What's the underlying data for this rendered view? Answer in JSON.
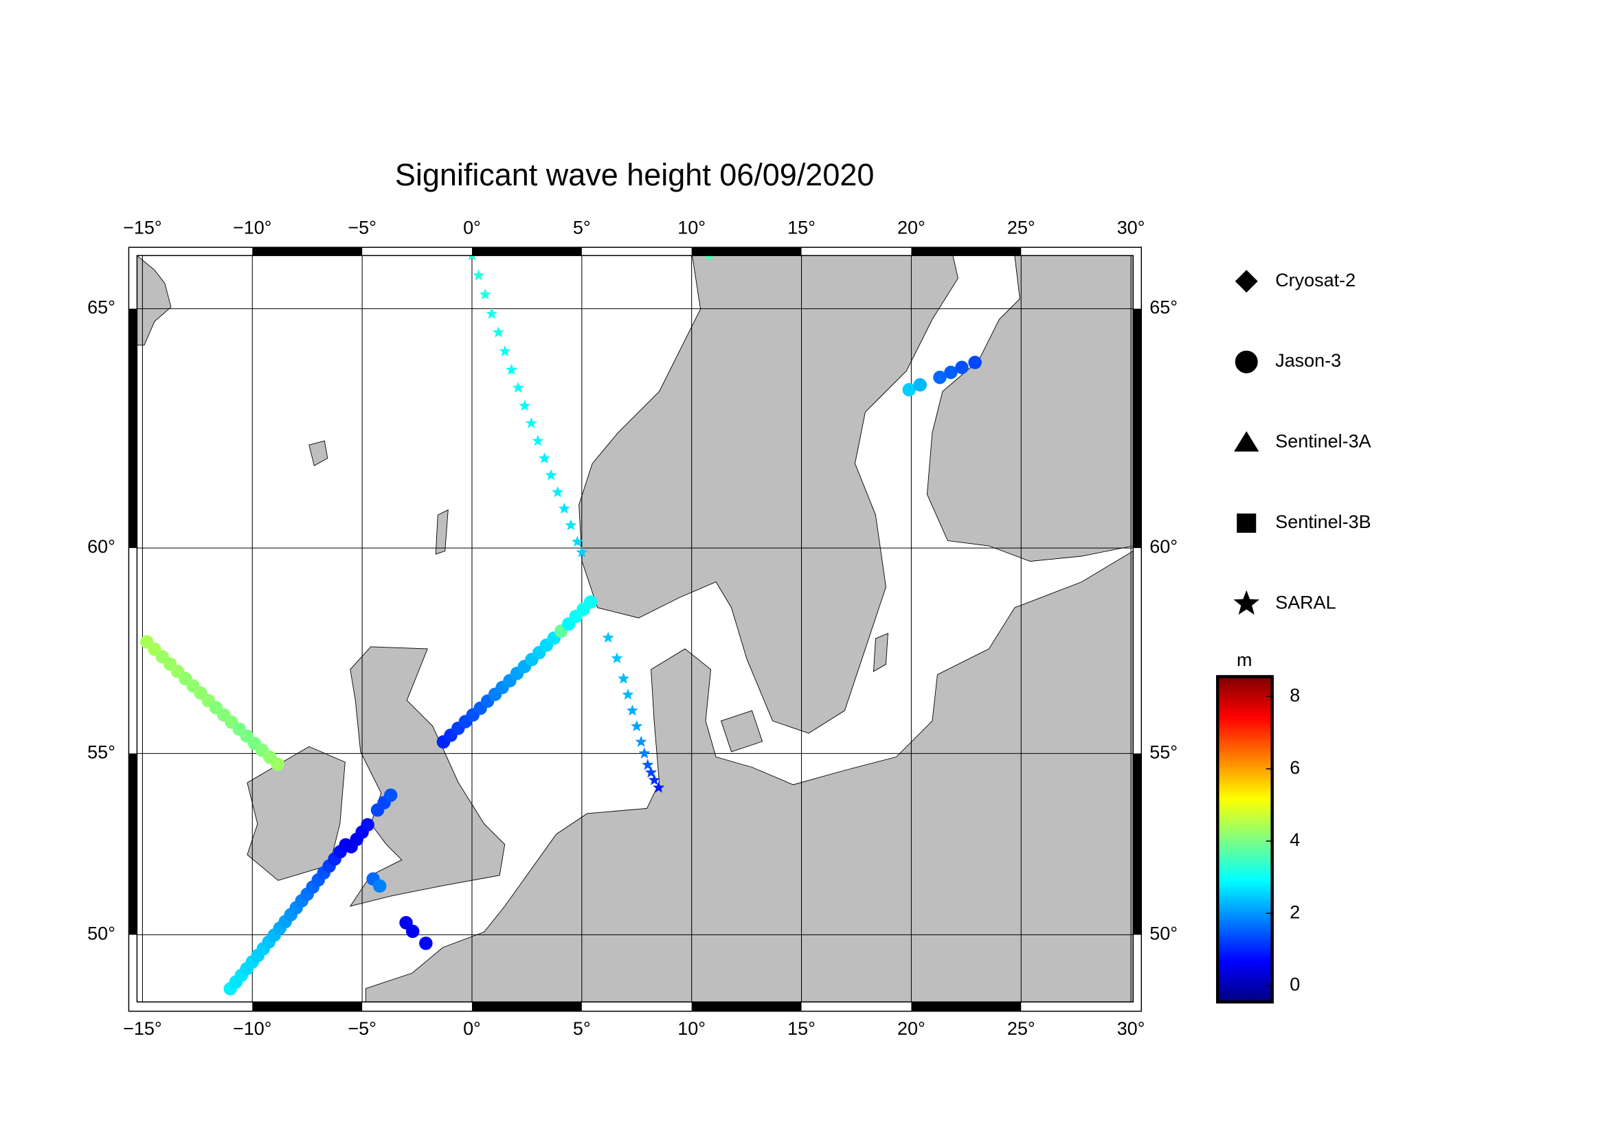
{
  "chart_data": {
    "type": "map",
    "projection": "mercator",
    "title": "Significant wave height 06/09/2020",
    "xlim": [
      -15.25,
      30.1
    ],
    "ylim": [
      48.0,
      66.0
    ],
    "xticks": [
      {
        "value": -15,
        "label": "−15°"
      },
      {
        "value": -10,
        "label": "−10°"
      },
      {
        "value": -5,
        "label": "−5°"
      },
      {
        "value": 0,
        "label": "0°"
      },
      {
        "value": 5,
        "label": "5°"
      },
      {
        "value": 10,
        "label": "10°"
      },
      {
        "value": 15,
        "label": "15°"
      },
      {
        "value": 20,
        "label": "20°"
      },
      {
        "value": 25,
        "label": "25°"
      },
      {
        "value": 30,
        "label": "30°"
      }
    ],
    "yticks": [
      {
        "value": 50,
        "label": "50°"
      },
      {
        "value": 55,
        "label": "55°"
      },
      {
        "value": 60,
        "label": "60°"
      },
      {
        "value": 65,
        "label": "65°"
      }
    ],
    "grid": true,
    "colormap": "jet",
    "clim": [
      -0.45,
      8.55
    ],
    "cticks": [
      0,
      2,
      4,
      6,
      8
    ],
    "colorbar_label": "m",
    "series": [
      {
        "name": "Cryosat-2",
        "marker": "diamond",
        "lon": [
          10.8
        ],
        "lat": [
          66.0
        ],
        "values": [
          3.6
        ]
      },
      {
        "name": "Jason-3",
        "marker": "circle",
        "lon": [
          -14.8,
          -14.45,
          -14.1,
          -13.75,
          -13.4,
          -13.05,
          -12.7,
          -12.35,
          -12.0,
          -11.65,
          -11.3,
          -10.95,
          -10.6,
          -10.25,
          -9.9,
          -9.55,
          -9.2,
          -8.85,
          -1.3,
          -0.97,
          -0.63,
          -0.3,
          0.04,
          0.38,
          0.71,
          1.05,
          1.38,
          1.72,
          2.05,
          2.39,
          2.72,
          3.06,
          3.39,
          3.73,
          4.06,
          4.4,
          4.73,
          5.07,
          5.4,
          -11.0,
          -10.75,
          -10.5,
          -10.25,
          -10.0,
          -9.75,
          -9.5,
          -9.25,
          -9.0,
          -8.75,
          -8.5,
          -8.25,
          -8.0,
          -7.75,
          -7.5,
          -7.25,
          -7.0,
          -6.75,
          -6.5,
          -6.25,
          -6.0,
          -5.75,
          -5.5,
          -5.25,
          -5.0,
          -4.75,
          -4.3,
          -4.0,
          -3.7,
          -4.5,
          -4.2,
          -3.0,
          -2.7,
          -2.1,
          19.9,
          20.4,
          21.3,
          21.8,
          22.3,
          22.9
        ],
        "lat": [
          57.8,
          57.62,
          57.44,
          57.26,
          57.08,
          56.9,
          56.72,
          56.54,
          56.35,
          56.17,
          55.99,
          55.81,
          55.63,
          55.45,
          55.26,
          55.08,
          54.9,
          54.72,
          55.3,
          55.47,
          55.65,
          55.82,
          55.99,
          56.16,
          56.34,
          56.51,
          56.68,
          56.85,
          57.03,
          57.2,
          57.37,
          57.54,
          57.72,
          57.89,
          58.06,
          58.23,
          58.41,
          58.58,
          58.75,
          48.4,
          48.6,
          48.8,
          49.0,
          49.2,
          49.39,
          49.59,
          49.79,
          49.99,
          50.19,
          50.38,
          50.58,
          50.78,
          50.98,
          51.17,
          51.37,
          51.57,
          51.77,
          51.96,
          52.16,
          52.36,
          52.55,
          52.5,
          52.7,
          52.9,
          53.1,
          53.5,
          53.7,
          53.9,
          51.6,
          51.4,
          50.35,
          50.1,
          49.75,
          63.4,
          63.5,
          63.65,
          63.75,
          63.85,
          63.95
        ],
        "values": [
          4.4,
          4.4,
          4.3,
          4.3,
          4.3,
          4.2,
          4.2,
          4.2,
          4.2,
          4.1,
          4.1,
          4.1,
          4.0,
          4.0,
          4.0,
          4.1,
          4.2,
          4.3,
          1.0,
          1.1,
          1.2,
          1.3,
          1.4,
          1.5,
          1.6,
          1.8,
          1.9,
          2.0,
          2.1,
          2.2,
          2.4,
          2.5,
          2.6,
          2.7,
          3.8,
          2.9,
          3.0,
          3.0,
          3.0,
          2.8,
          2.7,
          2.7,
          2.6,
          2.6,
          2.5,
          2.5,
          2.4,
          2.3,
          2.2,
          2.1,
          2.0,
          1.9,
          1.8,
          1.7,
          1.6,
          1.5,
          1.4,
          1.2,
          1.0,
          0.8,
          0.6,
          0.5,
          0.6,
          0.7,
          0.8,
          1.3,
          1.3,
          1.4,
          1.6,
          1.8,
          0.5,
          0.6,
          0.7,
          2.5,
          2.3,
          1.6,
          1.5,
          1.4,
          1.3
        ]
      },
      {
        "name": "Sentinel-3A",
        "marker": "triangle",
        "lon": [],
        "lat": [],
        "values": []
      },
      {
        "name": "Sentinel-3B",
        "marker": "square",
        "lon": [],
        "lat": [],
        "values": []
      },
      {
        "name": "SARAL",
        "marker": "star",
        "lon": [
          0,
          0.3,
          0.6,
          0.9,
          1.2,
          1.5,
          1.8,
          2.1,
          2.4,
          2.7,
          3.0,
          3.3,
          3.6,
          3.9,
          4.2,
          4.5,
          4.8,
          5.0,
          6.2,
          6.6,
          6.9,
          7.1,
          7.3,
          7.5,
          7.7,
          7.85,
          8.0,
          8.15,
          8.3,
          8.5
        ],
        "lat": [
          66.0,
          65.63,
          65.27,
          64.9,
          64.54,
          64.17,
          63.8,
          63.44,
          63.07,
          62.71,
          62.34,
          61.97,
          61.61,
          61.24,
          60.88,
          60.51,
          60.14,
          59.9,
          57.9,
          57.4,
          56.9,
          56.5,
          56.1,
          55.7,
          55.3,
          55.0,
          54.7,
          54.5,
          54.3,
          54.1
        ],
        "values": [
          3.3,
          3.2,
          3.2,
          3.1,
          3.1,
          3.0,
          3.0,
          3.0,
          2.9,
          2.9,
          2.9,
          2.8,
          2.8,
          2.8,
          2.7,
          2.7,
          2.6,
          2.5,
          2.4,
          2.4,
          2.3,
          2.3,
          2.2,
          2.1,
          2.0,
          1.8,
          1.5,
          1.3,
          1.1,
          0.9
        ]
      }
    ]
  }
}
